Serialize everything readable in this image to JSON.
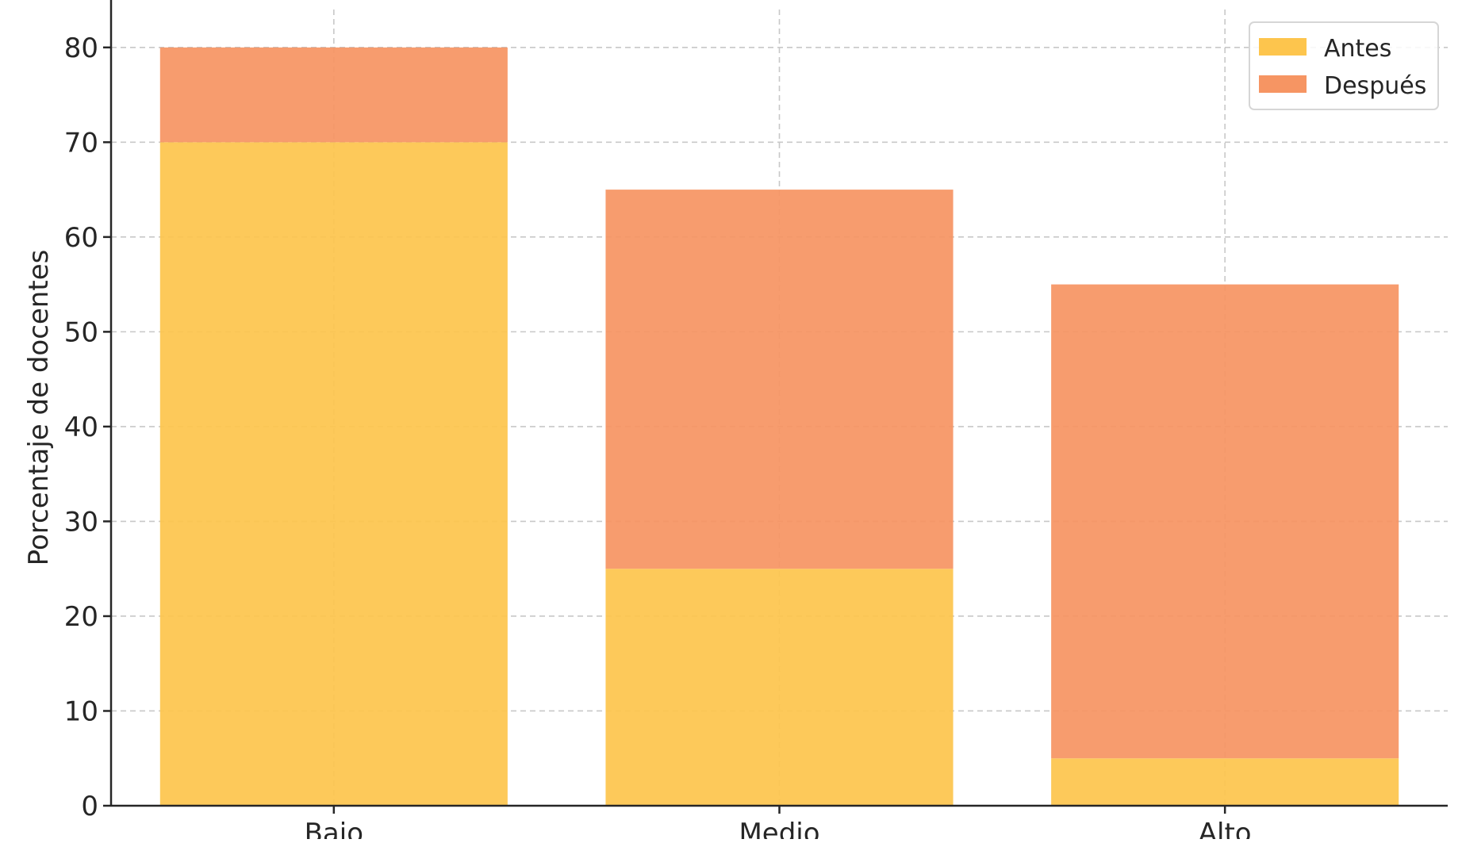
{
  "chart_data": {
    "type": "bar",
    "stacked": true,
    "categories": [
      "Bajo",
      "Medio",
      "Alto"
    ],
    "series": [
      {
        "name": "Antes",
        "values": [
          70,
          25,
          5
        ],
        "color": "#FDC54D"
      },
      {
        "name": "Después",
        "values": [
          10,
          40,
          50
        ],
        "color": "#F69563"
      }
    ],
    "ylabel": "Porcentaje de docentes",
    "xlabel": "",
    "ylim": [
      0,
      84
    ],
    "yticks": [
      0,
      10,
      20,
      30,
      40,
      50,
      60,
      70,
      80
    ],
    "grid": true,
    "legend_position": "top-right"
  }
}
